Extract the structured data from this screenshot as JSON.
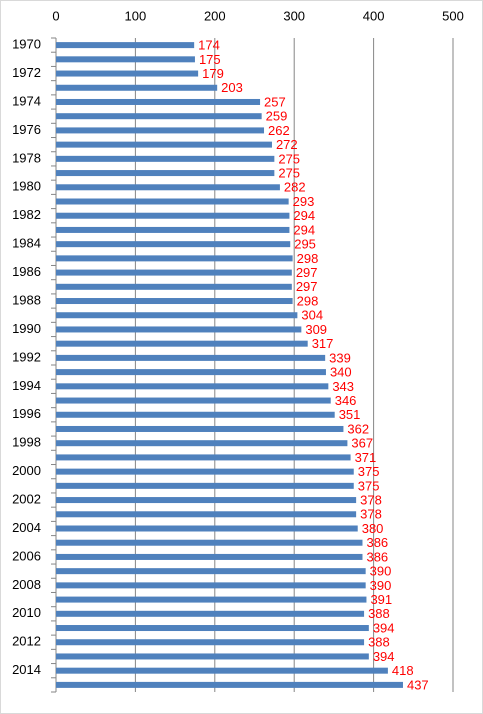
{
  "chart_data": {
    "type": "barh",
    "categories": [
      "1970",
      null,
      "1972",
      null,
      "1974",
      null,
      "1976",
      null,
      "1978",
      null,
      "1980",
      null,
      "1982",
      null,
      "1984",
      null,
      "1986",
      null,
      "1988",
      null,
      "1990",
      null,
      "1992",
      null,
      "1994",
      null,
      "1996",
      null,
      "1998",
      null,
      "2000",
      null,
      "2002",
      null,
      "2004",
      null,
      "2006",
      null,
      "2008",
      null,
      "2010",
      null,
      "2012",
      null,
      "2014",
      null
    ],
    "values": [
      174,
      175,
      179,
      203,
      257,
      259,
      262,
      272,
      275,
      275,
      282,
      293,
      294,
      294,
      295,
      298,
      297,
      297,
      298,
      304,
      309,
      317,
      339,
      340,
      343,
      346,
      351,
      362,
      367,
      371,
      375,
      375,
      378,
      378,
      380,
      386,
      386,
      390,
      390,
      391,
      388,
      394,
      388,
      394,
      418,
      437
    ],
    "color": "#4f81bd",
    "label_color": "#ff0000",
    "xlim": [
      0,
      500
    ],
    "xticks": [
      0,
      100,
      200,
      300,
      400,
      500
    ],
    "grid": true
  }
}
